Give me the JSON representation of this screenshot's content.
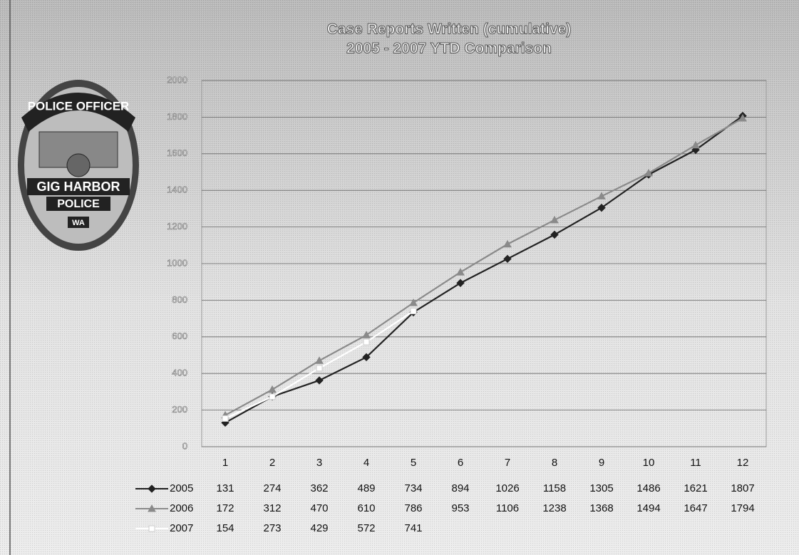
{
  "badge": {
    "top": "POLICE OFFICER",
    "middle": "GIG HARBOR",
    "lower": "POLICE",
    "bottom": "WA"
  },
  "chart_data": {
    "type": "line",
    "title": "Case Reports Written (cumulative)",
    "subtitle": "2005 - 2007 YTD Comparison",
    "categories": [
      1,
      2,
      3,
      4,
      5,
      6,
      7,
      8,
      9,
      10,
      11,
      12
    ],
    "series": [
      {
        "name": "2005",
        "color": "#222222",
        "marker": "diamond",
        "values": [
          131,
          274,
          362,
          489,
          734,
          894,
          1026,
          1158,
          1305,
          1486,
          1621,
          1807
        ]
      },
      {
        "name": "2006",
        "color": "#8a8a8a",
        "marker": "triangle",
        "values": [
          172,
          312,
          470,
          610,
          786,
          953,
          1106,
          1238,
          1368,
          1494,
          1647,
          1794
        ]
      },
      {
        "name": "2007",
        "color": "#ffffff",
        "marker": "square",
        "values": [
          154,
          273,
          429,
          572,
          741,
          null,
          null,
          null,
          null,
          null,
          null,
          null
        ]
      }
    ],
    "ylim": [
      0,
      2000
    ],
    "yticks": [
      0,
      200,
      400,
      600,
      800,
      1000,
      1200,
      1400,
      1600,
      1800,
      2000
    ],
    "grid": true
  }
}
